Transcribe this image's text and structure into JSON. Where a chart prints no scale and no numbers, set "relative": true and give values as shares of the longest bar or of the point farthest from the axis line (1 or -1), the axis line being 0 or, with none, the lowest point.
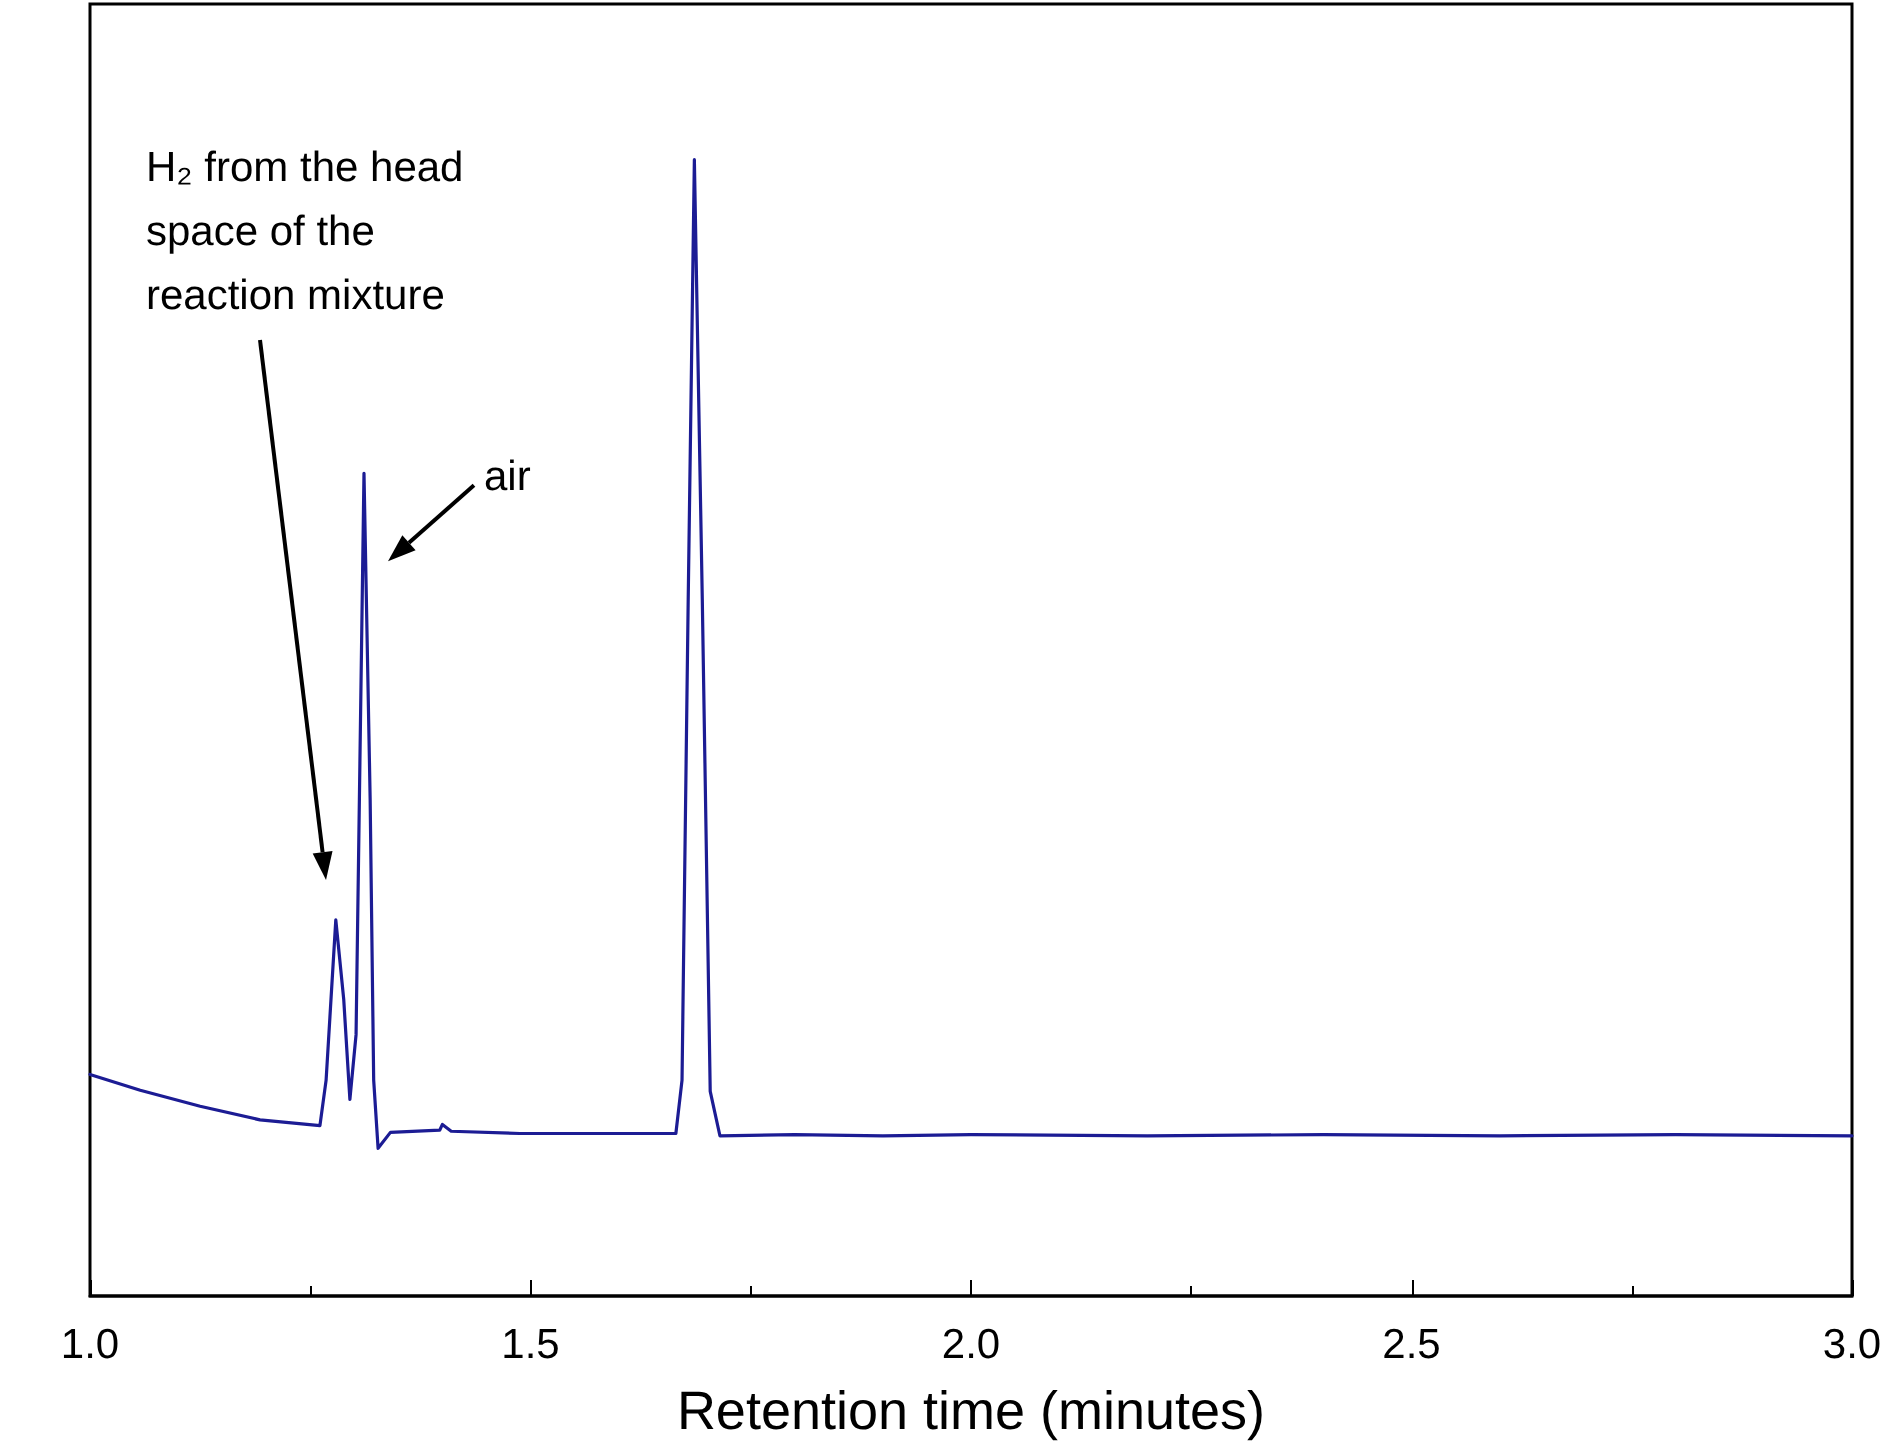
{
  "chart_data": {
    "type": "line",
    "relative": true,
    "xlabel": "Retention time (minutes)",
    "xlim": [
      1.0,
      3.0
    ],
    "xticks": [
      {
        "value": 1.0,
        "label": "1.0"
      },
      {
        "value": 1.5,
        "label": "1.5"
      },
      {
        "value": 2.0,
        "label": "2.0"
      },
      {
        "value": 2.5,
        "label": "2.5"
      },
      {
        "value": 3.0,
        "label": "3.0"
      }
    ],
    "grid": false,
    "marker": "none",
    "line_style": "solid",
    "series": [
      {
        "color": "#1c1c94",
        "x": [
          1.0,
          1.057,
          1.125,
          1.193,
          1.261,
          1.268,
          1.279,
          1.288,
          1.295,
          1.302,
          1.311,
          1.318,
          1.322,
          1.327,
          1.341,
          1.397,
          1.4,
          1.41,
          1.488,
          1.6,
          1.665,
          1.672,
          1.679,
          1.686,
          1.695,
          1.704,
          1.715,
          1.8,
          1.9,
          2.0,
          2.2,
          2.4,
          2.6,
          2.8,
          3.0
        ],
        "values": [
          0.195,
          0.181,
          0.167,
          0.155,
          0.15,
          0.19,
          0.331,
          0.261,
          0.173,
          0.23,
          0.724,
          0.437,
          0.19,
          0.13,
          0.144,
          0.146,
          0.151,
          0.145,
          0.143,
          0.143,
          0.143,
          0.19,
          0.613,
          1.0,
          0.613,
          0.18,
          0.141,
          0.142,
          0.141,
          0.142,
          0.141,
          0.142,
          0.141,
          0.142,
          0.141
        ]
      }
    ],
    "annotations": [
      "H₂ from the head space of the reaction mixture",
      {
        "text": "air",
        "x": 1.311,
        "y": 0.724
      }
    ]
  }
}
